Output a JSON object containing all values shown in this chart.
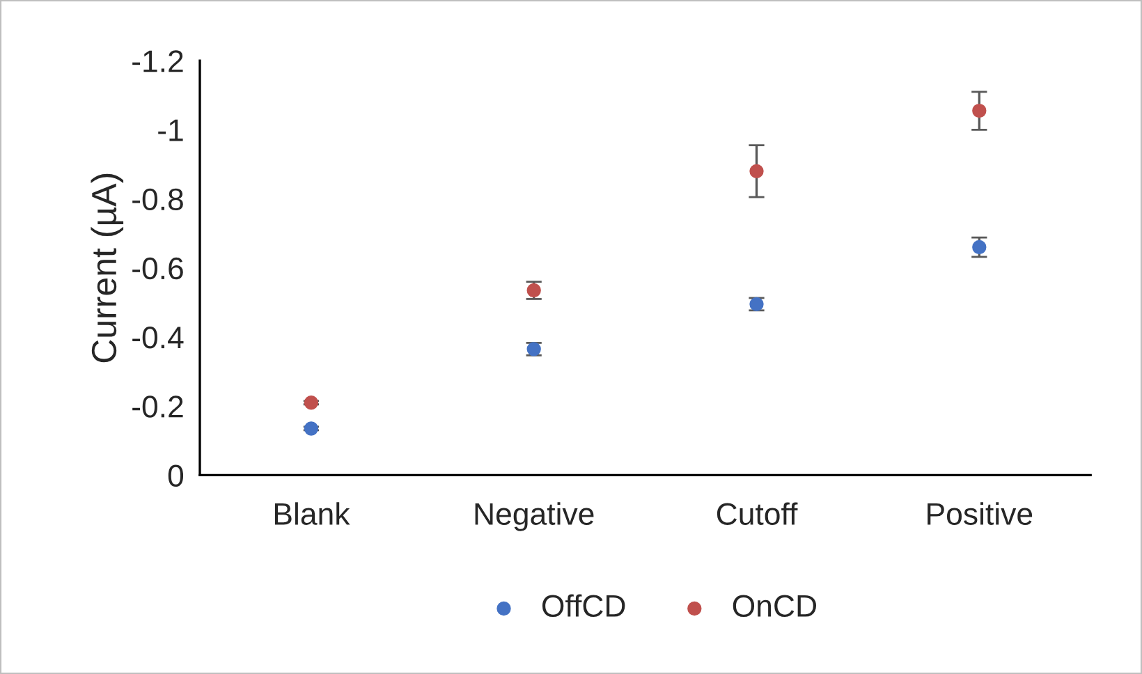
{
  "chart_data": {
    "type": "scatter",
    "ylabel": "Current (µA)",
    "categories": [
      "Blank",
      "Negative",
      "Cutoff",
      "Positive"
    ],
    "series": [
      {
        "name": "OffCD",
        "color": "#4472c4",
        "values": [
          -0.135,
          -0.365,
          -0.495,
          -0.66
        ],
        "errors": [
          0.005,
          0.018,
          0.018,
          0.028
        ]
      },
      {
        "name": "OnCD",
        "color": "#c0504d",
        "values": [
          -0.21,
          -0.535,
          -0.88,
          -1.055
        ],
        "errors": [
          0.005,
          0.025,
          0.075,
          0.055
        ]
      }
    ],
    "ylim": [
      0,
      -1.2
    ],
    "yticks": [
      0,
      -0.2,
      -0.4,
      -0.6,
      -0.8,
      -1,
      -1.2
    ],
    "grid": false,
    "legend": "bottom",
    "marker": "circle"
  }
}
